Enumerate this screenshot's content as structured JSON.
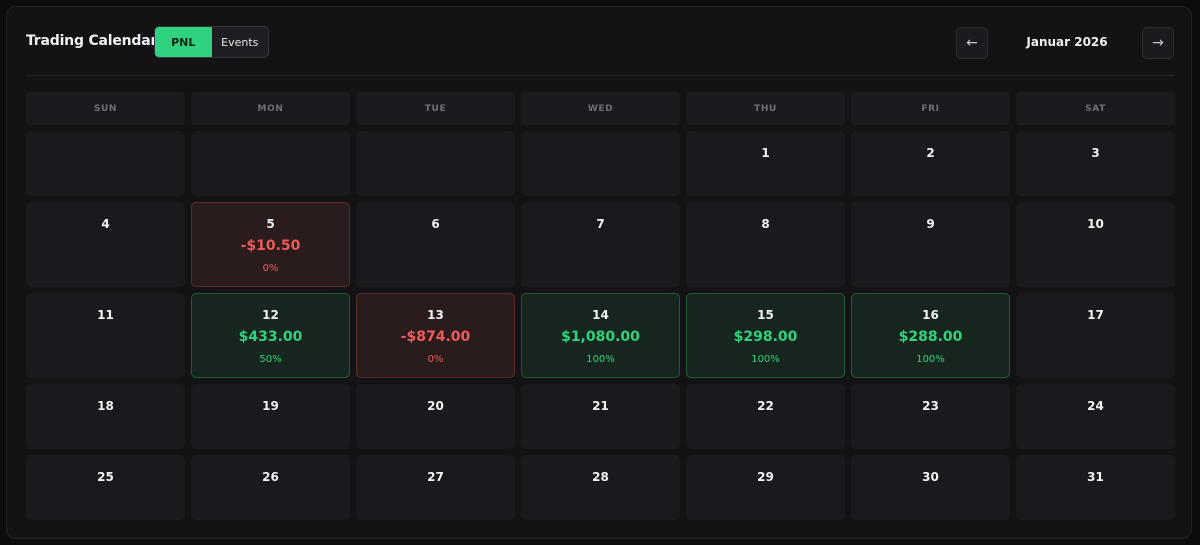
{
  "header": {
    "title": "Trading Calendar",
    "toggle": {
      "pnl_label": "PNL",
      "events_label": "Events",
      "active": "PNL"
    },
    "prev_icon": "←",
    "next_icon": "→",
    "month_label": "Januar 2026"
  },
  "weekdays": [
    "SUN",
    "MON",
    "TUE",
    "WED",
    "THU",
    "FRI",
    "SAT"
  ],
  "colors": {
    "gain": "#2fd27f",
    "loss": "#f05a5a",
    "accent": "#2fd27f"
  },
  "weeks": [
    [
      {
        "day": ""
      },
      {
        "day": ""
      },
      {
        "day": ""
      },
      {
        "day": ""
      },
      {
        "day": "1"
      },
      {
        "day": "2"
      },
      {
        "day": "3"
      }
    ],
    [
      {
        "day": "4"
      },
      {
        "day": "5",
        "pnl": "-$10.50",
        "pct": "0%",
        "status": "loss"
      },
      {
        "day": "6"
      },
      {
        "day": "7"
      },
      {
        "day": "8"
      },
      {
        "day": "9"
      },
      {
        "day": "10"
      }
    ],
    [
      {
        "day": "11"
      },
      {
        "day": "12",
        "pnl": "$433.00",
        "pct": "50%",
        "status": "gain"
      },
      {
        "day": "13",
        "pnl": "-$874.00",
        "pct": "0%",
        "status": "loss"
      },
      {
        "day": "14",
        "pnl": "$1,080.00",
        "pct": "100%",
        "status": "gain"
      },
      {
        "day": "15",
        "pnl": "$298.00",
        "pct": "100%",
        "status": "gain"
      },
      {
        "day": "16",
        "pnl": "$288.00",
        "pct": "100%",
        "status": "gain"
      },
      {
        "day": "17"
      }
    ],
    [
      {
        "day": "18"
      },
      {
        "day": "19"
      },
      {
        "day": "20"
      },
      {
        "day": "21"
      },
      {
        "day": "22"
      },
      {
        "day": "23"
      },
      {
        "day": "24"
      }
    ],
    [
      {
        "day": "25"
      },
      {
        "day": "26"
      },
      {
        "day": "27"
      },
      {
        "day": "28"
      },
      {
        "day": "29"
      },
      {
        "day": "30"
      },
      {
        "day": "31"
      }
    ]
  ]
}
